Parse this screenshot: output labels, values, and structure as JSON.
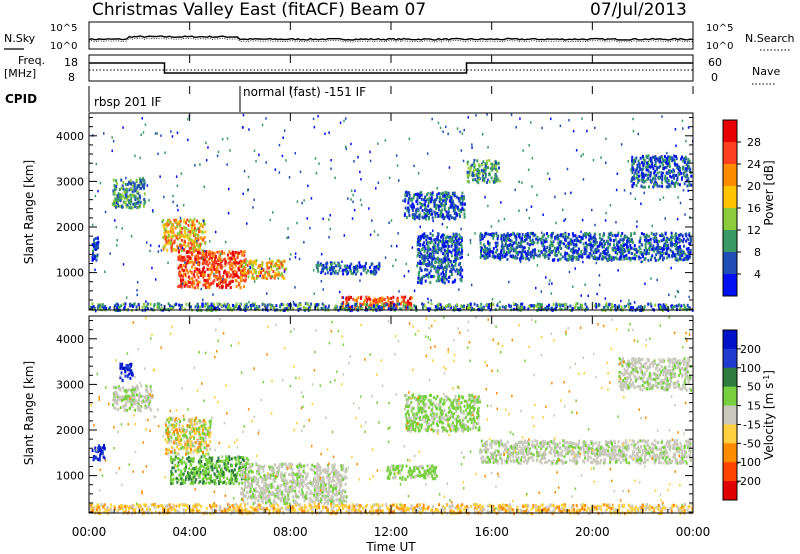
{
  "header": {
    "title": "Christmas Valley East (fitACF)",
    "beam": "Beam 07",
    "date": "07/Jul/2013"
  },
  "labels": {
    "nsky": "N.Sky",
    "nsearch": "N.Search",
    "freq": "Freq.",
    "freq_unit": "[MHz]",
    "nave": "Nave",
    "cpid": "CPID",
    "cpid_mode_1": "rbsp 201 IF",
    "cpid_mode_2": "normal (fast) -151 IF"
  },
  "small_ticks": {
    "noise_left": [
      "10^5",
      "10^0"
    ],
    "noise_right": [
      "10^5",
      "10^0"
    ],
    "freq_left": [
      "18",
      "8"
    ],
    "freq_right": [
      "60",
      "0"
    ]
  },
  "chart_data": [
    {
      "type": "heatmap",
      "name": "power",
      "ylabel": "Slant Range [km]",
      "ylim": [
        180,
        4500
      ],
      "yticks": [
        1000,
        2000,
        3000,
        4000
      ],
      "xlim": [
        0,
        24
      ],
      "colorbar": {
        "label": "Power [dB]",
        "ticks": [
          "28",
          "24",
          "20",
          "16",
          "12",
          "8",
          "4"
        ],
        "colors": [
          "#e60000",
          "#ff4020",
          "#ff8c00",
          "#ffc400",
          "#8ccc3c",
          "#3a9a66",
          "#1f4fb4",
          "#0010f0"
        ]
      },
      "regions": [
        {
          "t": [
            0.1,
            0.35
          ],
          "r": [
            1300,
            1800
          ],
          "level": "low"
        },
        {
          "t": [
            0.9,
            2.2
          ],
          "r": [
            2450,
            3100
          ],
          "level": "mid"
        },
        {
          "t": [
            2.9,
            4.6
          ],
          "r": [
            1500,
            2200
          ],
          "level": "high"
        },
        {
          "t": [
            3.5,
            6.2
          ],
          "r": [
            700,
            1500
          ],
          "level": "max"
        },
        {
          "t": [
            6.0,
            7.8
          ],
          "r": [
            900,
            1300
          ],
          "level": "high"
        },
        {
          "t": [
            10.0,
            12.8
          ],
          "r": [
            250,
            500
          ],
          "level": "max"
        },
        {
          "t": [
            9.0,
            11.5
          ],
          "r": [
            1000,
            1250
          ],
          "level": "low"
        },
        {
          "t": [
            13.0,
            14.8
          ],
          "r": [
            800,
            1900
          ],
          "level": "low"
        },
        {
          "t": [
            12.5,
            14.9
          ],
          "r": [
            2200,
            2800
          ],
          "level": "low"
        },
        {
          "t": [
            15.0,
            16.3
          ],
          "r": [
            3000,
            3500
          ],
          "level": "mid"
        },
        {
          "t": [
            15.5,
            23.9
          ],
          "r": [
            1300,
            1900
          ],
          "level": "low"
        },
        {
          "t": [
            21.5,
            23.9
          ],
          "r": [
            2900,
            3600
          ],
          "level": "low"
        },
        {
          "t": [
            0.0,
            24.0
          ],
          "r": [
            200,
            350
          ],
          "level": "noise"
        }
      ]
    },
    {
      "type": "heatmap",
      "name": "velocity",
      "ylabel": "Slant Range [km]",
      "xlabel": "Time UT",
      "ylim": [
        180,
        4500
      ],
      "yticks": [
        1000,
        2000,
        3000,
        4000
      ],
      "xlim": [
        0,
        24
      ],
      "xtick_labels": [
        "00:00",
        "04:00",
        "08:00",
        "12:00",
        "16:00",
        "20:00",
        "00:00"
      ],
      "colorbar": {
        "label": "Velocity [m s^-1]",
        "ticks": [
          "200",
          "100",
          "50",
          "15",
          "-15",
          "-50",
          "-100",
          "-200"
        ],
        "colors": [
          "#0012c8",
          "#203cd0",
          "#2e7c3e",
          "#78d040",
          "#c8c8bc",
          "#ffd040",
          "#ff8c00",
          "#ff4400",
          "#e00000"
        ]
      },
      "regions": [
        {
          "t": [
            0.1,
            0.6
          ],
          "r": [
            1350,
            1700
          ],
          "level": "blue"
        },
        {
          "t": [
            0.9,
            2.5
          ],
          "r": [
            2450,
            3000
          ],
          "level": "gray"
        },
        {
          "t": [
            1.2,
            1.7
          ],
          "r": [
            3100,
            3500
          ],
          "level": "blue"
        },
        {
          "t": [
            3.0,
            4.8
          ],
          "r": [
            1500,
            2300
          ],
          "level": "mixed"
        },
        {
          "t": [
            3.2,
            6.3
          ],
          "r": [
            850,
            1450
          ],
          "level": "green"
        },
        {
          "t": [
            6.0,
            10.2
          ],
          "r": [
            400,
            1300
          ],
          "level": "gray"
        },
        {
          "t": [
            11.8,
            13.8
          ],
          "r": [
            950,
            1250
          ],
          "level": "lightgreen"
        },
        {
          "t": [
            12.5,
            15.5
          ],
          "r": [
            2000,
            2800
          ],
          "level": "lightgreen"
        },
        {
          "t": [
            15.5,
            23.9
          ],
          "r": [
            1300,
            1800
          ],
          "level": "gray"
        },
        {
          "t": [
            21.0,
            23.9
          ],
          "r": [
            2900,
            3600
          ],
          "level": "gray"
        },
        {
          "t": [
            0.0,
            24.0
          ],
          "r": [
            200,
            400
          ],
          "level": "orange"
        }
      ]
    }
  ]
}
